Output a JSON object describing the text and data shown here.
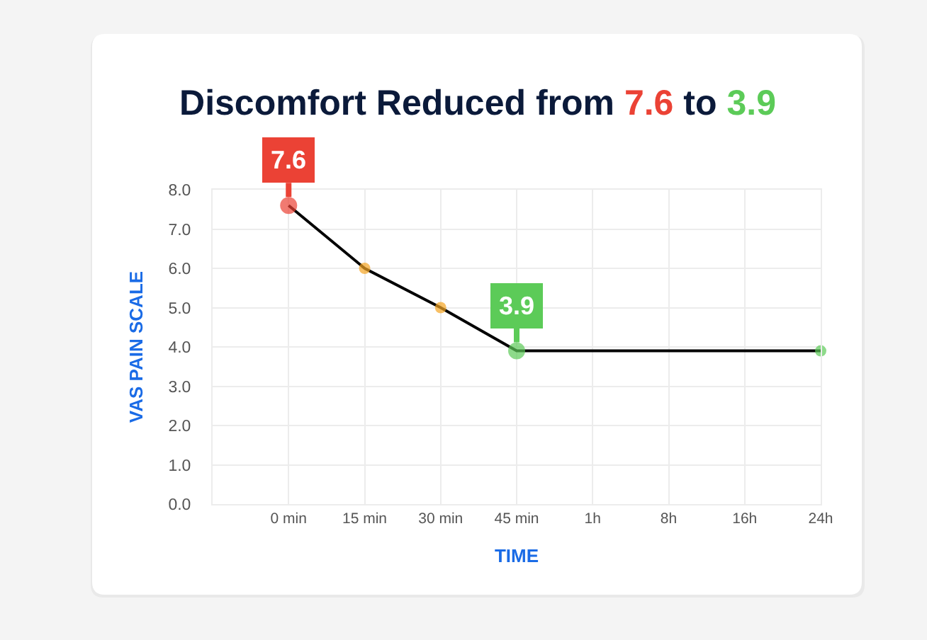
{
  "chart_data": {
    "type": "line",
    "title": "Discomfort Reduced from 7.6 to 3.9",
    "xlabel": "TIME",
    "ylabel": "VAS PAIN SCALE",
    "categories": [
      null,
      "0 min",
      "15 min",
      "30 min",
      "45 min",
      "1h",
      "8h",
      "16h",
      "24h"
    ],
    "series": [
      {
        "color": "#000000",
        "colors": [
          "#eb4235",
          "#f5a524",
          "#f5a524",
          "#5ccb58",
          "#5ccb58"
        ],
        "x": [
          "0 min",
          "15 min",
          "30 min",
          "45 min",
          "24h"
        ],
        "values": [
          7.6,
          6.0,
          5.0,
          3.9,
          3.9
        ],
        "value_labels": [
          "7.6",
          null,
          null,
          "3.9",
          null
        ]
      }
    ],
    "ylim": [
      0,
      8
    ],
    "yticks": [
      {
        "value": 0,
        "label": "0.0"
      },
      {
        "value": 1,
        "label": "1.0"
      },
      {
        "value": 2,
        "label": "2.0"
      },
      {
        "value": 3,
        "label": "3.0"
      },
      {
        "value": 4,
        "label": "4.0"
      },
      {
        "value": 5,
        "label": "5.0"
      },
      {
        "value": 6,
        "label": "6.0"
      },
      {
        "value": 7,
        "label": "7.0"
      },
      {
        "value": 8,
        "label": "8.0"
      }
    ],
    "grid": true,
    "marker": "circle",
    "line_style": "solid"
  }
}
